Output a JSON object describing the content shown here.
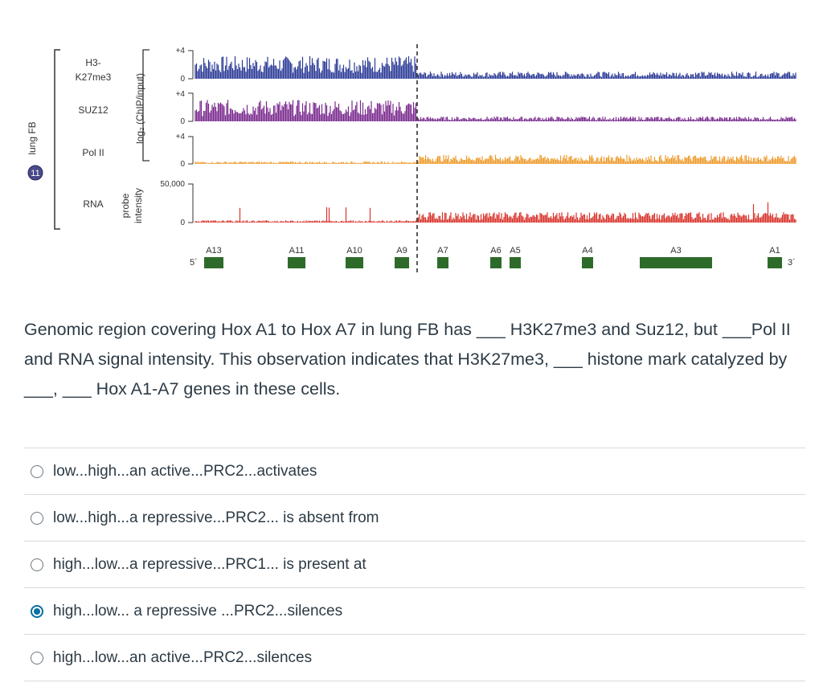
{
  "figure": {
    "sample_label": "lung FB",
    "sample_badge": "11",
    "tracks": [
      {
        "name": "H3-",
        "name2": "K27me3",
        "color": "#2b3a97",
        "top_tick": "+4",
        "zero_tick": "0",
        "left_level": 0.95,
        "right_level": 0.3
      },
      {
        "name": "SUZ12",
        "name2": "",
        "color": "#7a2a8e",
        "top_tick": "+4",
        "zero_tick": "0",
        "left_level": 0.9,
        "right_level": 0.2
      },
      {
        "name": "Pol II",
        "name2": "",
        "color": "#ee9a2a",
        "top_tick": "+4",
        "zero_tick": "0",
        "left_level": 0.15,
        "right_level": 0.55
      },
      {
        "name": "RNA",
        "name2": "",
        "color": "#d9342b",
        "top_tick": "50,000",
        "zero_tick": "0",
        "left_level": 0.1,
        "right_level": 0.45
      }
    ],
    "axis_label_top": "log₂ (ChIP/input)",
    "axis_label_bottom_1": "probe",
    "axis_label_bottom_2": "intensity",
    "five_prime": "5´",
    "three_prime": "3´",
    "genes": [
      "A13",
      "A11",
      "A10",
      "A9",
      "A7",
      "A6",
      "A5",
      "A4",
      "A3",
      "A1"
    ],
    "gene_color": "#2e6b2a"
  },
  "question": {
    "text": "Genomic region covering Hox A1 to Hox A7 in lung FB has ___ H3K27me3 and Suz12, but ___Pol II and RNA signal intensity. This observation indicates that H3K27me3, ___ histone mark catalyzed by ___, ___ Hox A1-A7 genes in these cells."
  },
  "answers": [
    {
      "label": "low...high...an active...PRC2...activates",
      "selected": false
    },
    {
      "label": "low...high...a repressive...PRC2... is absent from",
      "selected": false
    },
    {
      "label": "high...low...a repressive...PRC1... is present at",
      "selected": false
    },
    {
      "label": "high...low... a repressive ...PRC2...silences",
      "selected": true
    },
    {
      "label": "high...low...an active...PRC2...silences",
      "selected": false
    }
  ]
}
